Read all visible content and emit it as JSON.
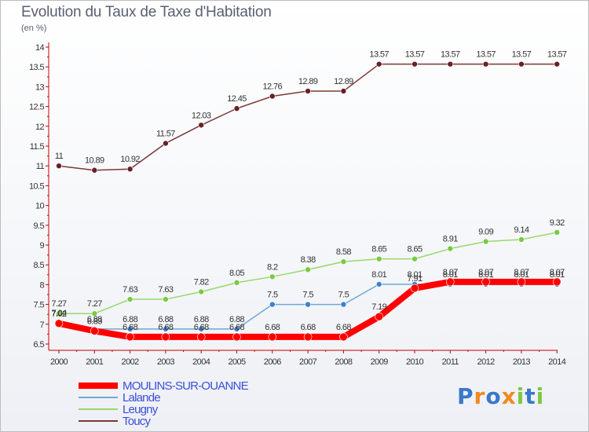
{
  "chart_data": {
    "type": "line",
    "title": "Evolution du Taux de Taxe d'Habitation",
    "unit_label": "(en %)",
    "x": [
      "2000",
      "2001",
      "2002",
      "2003",
      "2004",
      "2005",
      "2006",
      "2007",
      "2008",
      "2009",
      "2010",
      "2011",
      "2012",
      "2013",
      "2014"
    ],
    "ylim": [
      6.5,
      14
    ],
    "yticks": [
      "6.5",
      "7",
      "7.5",
      "8",
      "8.5",
      "9",
      "9.5",
      "10",
      "10.5",
      "11",
      "11.5",
      "12",
      "12.5",
      "13",
      "13.5",
      "14"
    ],
    "grid": false,
    "legend_position": "bottom-left",
    "series": [
      {
        "name": "MOULINS-SUR-OUANNE",
        "color": "#ff0000",
        "marker_color": "#ff0000",
        "values": [
          7.02,
          6.83,
          6.68,
          6.68,
          6.68,
          6.68,
          6.68,
          6.68,
          6.68,
          7.19,
          7.91,
          8.07,
          8.07,
          8.07,
          8.07
        ],
        "labels": [
          "7.02",
          "6.83",
          "6.68",
          "6.68",
          "6.68",
          "6.68",
          "6.68",
          "6.68",
          "6.68",
          "7.19",
          "7.91",
          "8.07",
          "8.07",
          "8.07",
          "8.07"
        ]
      },
      {
        "name": "Lalande",
        "color": "#6fa8d6",
        "marker_color": "#3d7fd0",
        "values": [
          7.04,
          6.88,
          6.88,
          6.88,
          6.88,
          6.88,
          7.5,
          7.5,
          7.5,
          8.01,
          8.01,
          8.01,
          8.01,
          8.01,
          8.01
        ],
        "labels": [
          "7.04",
          "6.88",
          "6.88",
          "6.88",
          "6.88",
          "6.88",
          "7.5",
          "7.5",
          "7.5",
          "8.01",
          "8.01",
          "8.01",
          "8.01",
          "8.01",
          "8.01"
        ]
      },
      {
        "name": "Leugny",
        "color": "#98d86a",
        "marker_color": "#7ac943",
        "values": [
          7.27,
          7.27,
          7.63,
          7.63,
          7.82,
          8.05,
          8.2,
          8.38,
          8.58,
          8.65,
          8.65,
          8.91,
          9.09,
          9.14,
          9.32
        ],
        "labels": [
          "7.27",
          "7.27",
          "7.63",
          "7.63",
          "7.82",
          "8.05",
          "8.2",
          "8.38",
          "8.58",
          "8.65",
          "8.65",
          "8.91",
          "9.09",
          "9.14",
          "9.32"
        ]
      },
      {
        "name": "Toucy",
        "color": "#7a3838",
        "marker_color": "#6a1f27",
        "values": [
          11,
          10.89,
          10.92,
          11.57,
          12.03,
          12.45,
          12.76,
          12.89,
          12.89,
          13.57,
          13.57,
          13.57,
          13.57,
          13.57,
          13.57
        ],
        "labels": [
          "11",
          "10.89",
          "10.92",
          "11.57",
          "12.03",
          "12.45",
          "12.76",
          "12.89",
          "12.89",
          "13.57",
          "13.57",
          "13.57",
          "13.57",
          "13.57",
          "13.57"
        ]
      }
    ]
  },
  "brand": {
    "letters": [
      "P",
      "r",
      "o",
      "x",
      "i",
      "t",
      "i"
    ],
    "colors": [
      "#3a78c8",
      "#f08a1c",
      "#3a78c8",
      "#f08a1c",
      "#7ac943",
      "#3a78c8",
      "#7ac943"
    ]
  }
}
